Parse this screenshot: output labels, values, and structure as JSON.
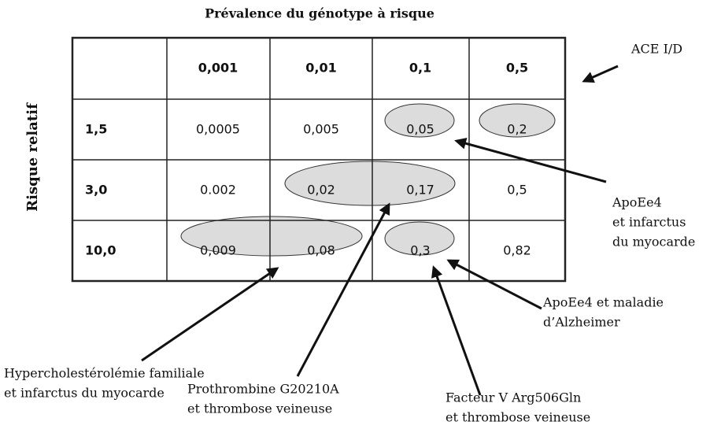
{
  "title": "Prévalence du génotype à risque",
  "y_label": "Risque relatif",
  "table": {
    "header": [
      "0,001",
      "0,01",
      "0,1",
      "0,5"
    ],
    "rows": [
      [
        "1,5",
        "0,0005",
        "0,005",
        "0,05",
        "0,2"
      ],
      [
        "3,0",
        "0.002",
        "0,02",
        "0,17",
        "0,5"
      ],
      [
        "10,0",
        "0,009",
        "0,08",
        "0,3",
        "0,82"
      ]
    ]
  },
  "annotations": [
    {
      "lines": [
        "ACE I/D"
      ]
    },
    {
      "lines": [
        "ApoEe4",
        "et infarctus",
        "du myocarde"
      ]
    },
    {
      "lines": [
        "ApoEe4 et maladie",
        "d’Alzheimer"
      ]
    },
    {
      "lines": [
        "Hypercholestérolémie familiale",
        "et infarctus du myocarde"
      ]
    },
    {
      "lines": [
        "Prothrombine G20210A",
        "et thrombose veineuse"
      ]
    },
    {
      "lines": [
        "Facteur V Arg506Gln",
        "et thrombose veineuse"
      ]
    }
  ]
}
